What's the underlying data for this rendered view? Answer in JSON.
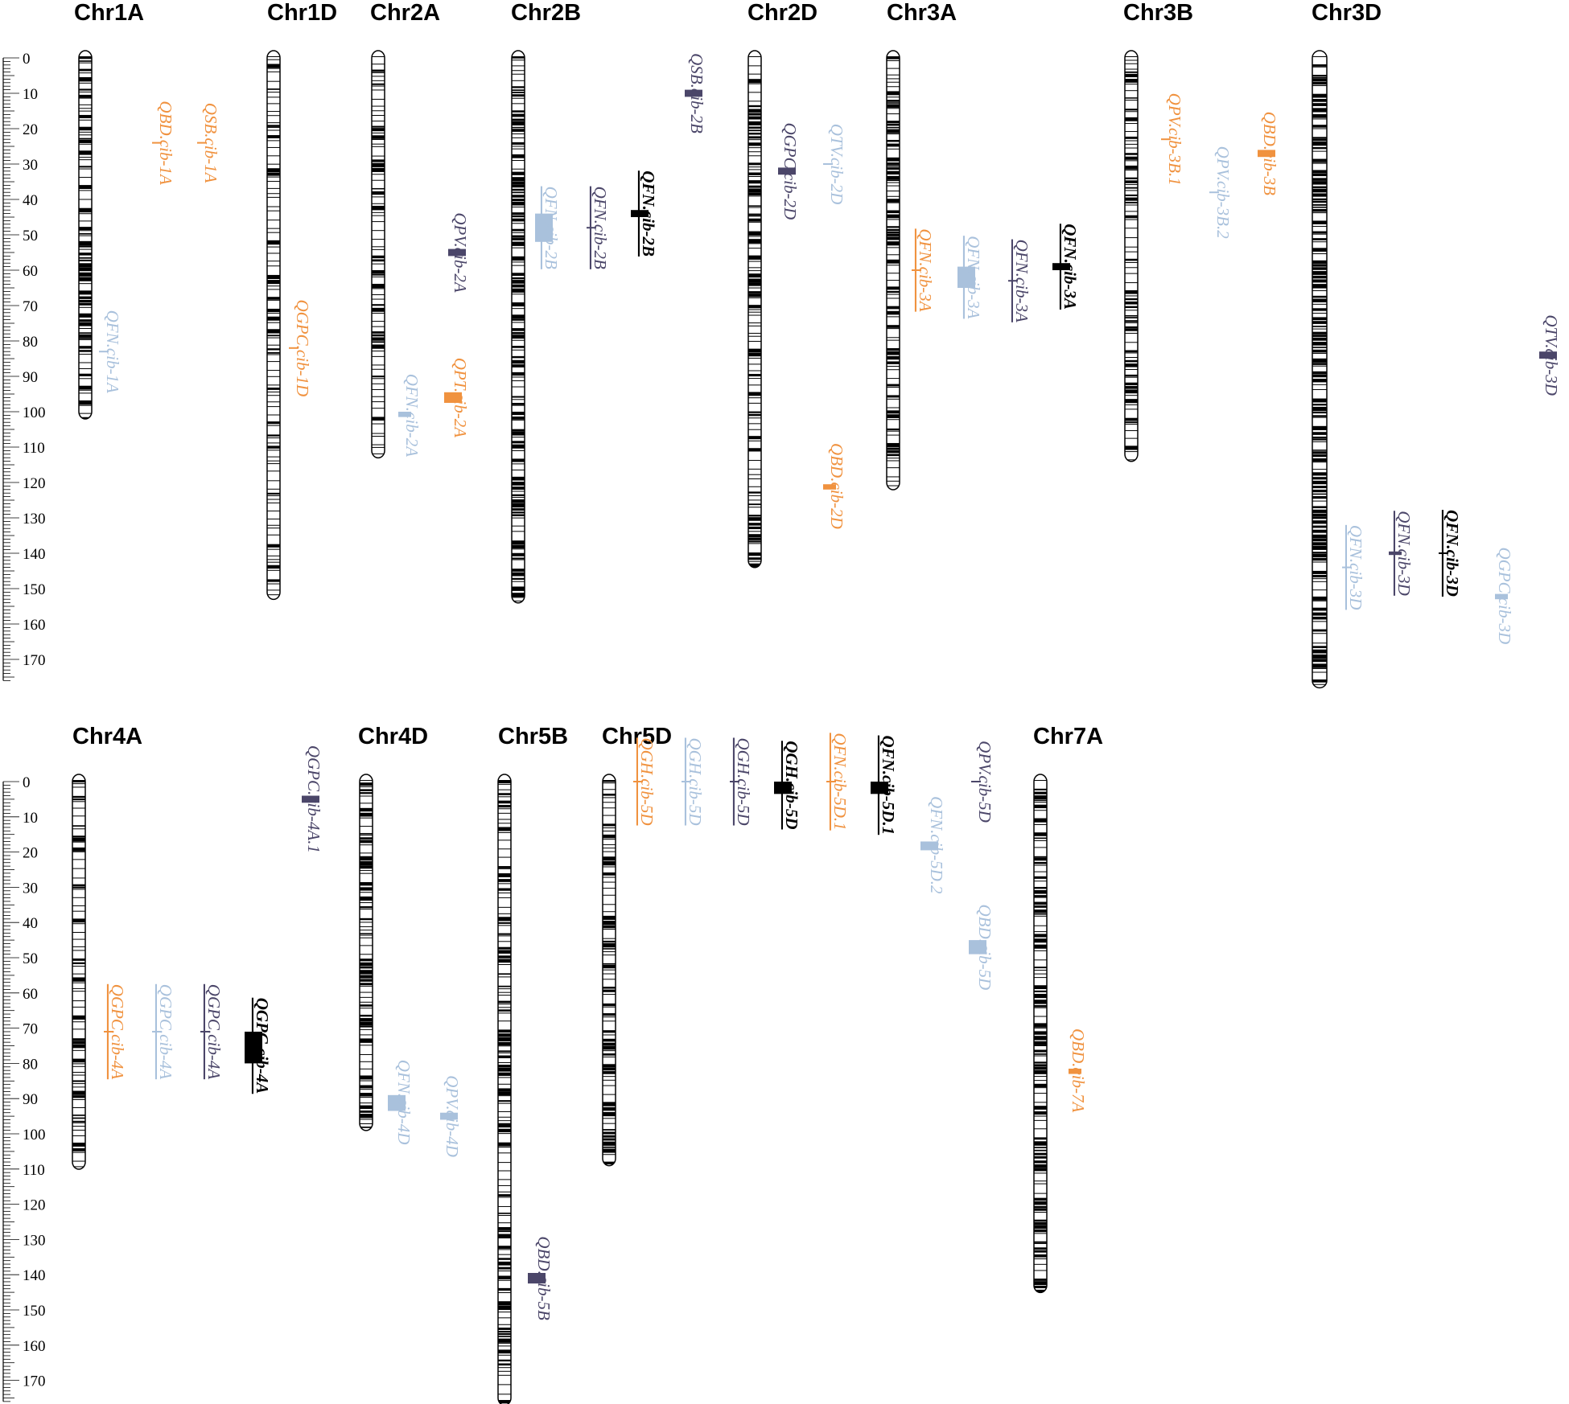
{
  "colors": {
    "orange": "#F0923F",
    "light": "#A9C1DC",
    "purple": "#4B4669",
    "black": "#000000"
  },
  "scale": {
    "ticks": [
      0,
      10,
      20,
      30,
      40,
      50,
      60,
      70,
      80,
      90,
      100,
      110,
      120,
      130,
      140,
      150,
      160,
      170
    ]
  },
  "chromosomes": [
    {
      "id": "chr1a",
      "name": "Chr1A",
      "length": 100
    },
    {
      "id": "chr1d",
      "name": "Chr1D",
      "length": 151
    },
    {
      "id": "chr2a",
      "name": "Chr2A",
      "length": 111
    },
    {
      "id": "chr2b",
      "name": "Chr2B",
      "length": 152
    },
    {
      "id": "chr2d",
      "name": "Chr2D",
      "length": 142
    },
    {
      "id": "chr3a",
      "name": "Chr3A",
      "length": 120
    },
    {
      "id": "chr3b",
      "name": "Chr3B",
      "length": 112
    },
    {
      "id": "chr3d",
      "name": "Chr3D",
      "length": 176
    },
    {
      "id": "chr4a",
      "name": "Chr4A",
      "length": 108
    },
    {
      "id": "chr4d",
      "name": "Chr4D",
      "length": 97
    },
    {
      "id": "chr5b",
      "name": "Chr5B",
      "length": 175
    },
    {
      "id": "chr5d",
      "name": "Chr5D",
      "length": 107
    },
    {
      "id": "chr7a",
      "name": "Chr7A",
      "length": 143
    }
  ],
  "qtls": [
    {
      "label": "QBD.cib-1A",
      "chr": "Chr1A",
      "pos": 24,
      "start": 24,
      "end": 24,
      "color": "orange",
      "underline": false
    },
    {
      "label": "QSB.cib-1A",
      "chr": "Chr1A",
      "pos": 24,
      "start": 24,
      "end": 24,
      "color": "orange",
      "underline": false
    },
    {
      "label": "QFN.cib-1A",
      "chr": "Chr1A",
      "pos": 83,
      "start": 83,
      "end": 83,
      "color": "light",
      "underline": false
    },
    {
      "label": "QGPC.cib-1D",
      "chr": "Chr1D",
      "pos": 82,
      "start": 82,
      "end": 82,
      "color": "orange",
      "underline": false
    },
    {
      "label": "QPV.cib-2A",
      "chr": "Chr2A",
      "pos": 55,
      "start": 54,
      "end": 56,
      "color": "purple",
      "underline": false
    },
    {
      "label": "QFN.cib-2A",
      "chr": "Chr2A",
      "pos": 101,
      "start": 100,
      "end": 101.5,
      "color": "light",
      "underline": false
    },
    {
      "label": "QPT.cib-2A",
      "chr": "Chr2A",
      "pos": 96,
      "start": 94.5,
      "end": 97.5,
      "color": "orange",
      "underline": false
    },
    {
      "label": "QFN.cib-2B",
      "chr": "Chr2B",
      "pos": 48,
      "start": 44,
      "end": 52,
      "color": "light",
      "underline": true
    },
    {
      "label": "QFN.cib-2B",
      "chr": "Chr2B",
      "pos": 48,
      "start": 48,
      "end": 48,
      "color": "purple",
      "underline": true
    },
    {
      "label": "QFN.cib-2B",
      "chr": "Chr2B",
      "pos": 44,
      "start": 43,
      "end": 45,
      "color": "black",
      "underline": true
    },
    {
      "label": "QSB.cib-2B",
      "chr": "Chr2B",
      "pos": 10,
      "start": 9,
      "end": 11,
      "color": "purple",
      "underline": false
    },
    {
      "label": "QGPC.cib-2D",
      "chr": "Chr2D",
      "pos": 32,
      "start": 31,
      "end": 33,
      "color": "purple",
      "underline": false
    },
    {
      "label": "QTV.cib-2D",
      "chr": "Chr2D",
      "pos": 30,
      "start": 30,
      "end": 30,
      "color": "light",
      "underline": false
    },
    {
      "label": "QBD.cib-2D",
      "chr": "Chr2D",
      "pos": 121,
      "start": 120.5,
      "end": 122,
      "color": "orange",
      "underline": false
    },
    {
      "label": "QFN.cib-3A",
      "chr": "Chr3A",
      "pos": 60,
      "start": 60,
      "end": 60,
      "color": "orange",
      "underline": true
    },
    {
      "label": "QFN.cib-3A",
      "chr": "Chr3A",
      "pos": 62,
      "start": 59,
      "end": 65,
      "color": "light",
      "underline": true
    },
    {
      "label": "QFN.cib-3A",
      "chr": "Chr3A",
      "pos": 63,
      "start": 63,
      "end": 63,
      "color": "purple",
      "underline": true
    },
    {
      "label": "QFN.cib-3A",
      "chr": "Chr3A",
      "pos": 59,
      "start": 58,
      "end": 60,
      "color": "black",
      "underline": true
    },
    {
      "label": "QPV.cib-3B.1",
      "chr": "Chr3B",
      "pos": 23,
      "start": 23,
      "end": 23,
      "color": "orange",
      "underline": false
    },
    {
      "label": "QPV.cib-3B.2",
      "chr": "Chr3B",
      "pos": 38,
      "start": 38,
      "end": 38,
      "color": "light",
      "underline": false
    },
    {
      "label": "QBD.cib-3B",
      "chr": "Chr3B",
      "pos": 27,
      "start": 26,
      "end": 28,
      "color": "orange",
      "underline": false
    },
    {
      "label": "QTV.cib-3D",
      "chr": "Chr3D",
      "pos": 84,
      "start": 83,
      "end": 85,
      "color": "purple",
      "underline": false
    },
    {
      "label": "QFN.cib-3D",
      "chr": "Chr3D",
      "pos": 144,
      "start": 144,
      "end": 144,
      "color": "light",
      "underline": true
    },
    {
      "label": "QFN.cib-3D",
      "chr": "Chr3D",
      "pos": 140,
      "start": 139.5,
      "end": 140.5,
      "color": "purple",
      "underline": true
    },
    {
      "label": "QFN.cib-3D",
      "chr": "Chr3D",
      "pos": 140,
      "start": 140,
      "end": 140,
      "color": "black",
      "underline": true
    },
    {
      "label": "QGPC.cib-3D",
      "chr": "Chr3D",
      "pos": 152,
      "start": 151.5,
      "end": 153,
      "color": "light",
      "underline": false
    },
    {
      "label": "QGPC.cib-4A.1",
      "chr": "Chr4A",
      "pos": 5,
      "start": 4,
      "end": 6,
      "color": "purple",
      "underline": false
    },
    {
      "label": "QGPC.cib-4A",
      "chr": "Chr4A",
      "pos": 71,
      "start": 71,
      "end": 71,
      "color": "orange",
      "underline": true
    },
    {
      "label": "QGPC.cib-4A",
      "chr": "Chr4A",
      "pos": 71,
      "start": 71,
      "end": 71,
      "color": "light",
      "underline": true
    },
    {
      "label": "QGPC.cib-4A",
      "chr": "Chr4A",
      "pos": 71,
      "start": 71,
      "end": 71,
      "color": "purple",
      "underline": true
    },
    {
      "label": "QGPC.cib-4A",
      "chr": "Chr4A",
      "pos": 75,
      "start": 71,
      "end": 80,
      "color": "black",
      "underline": true
    },
    {
      "label": "QFN.cib-4D",
      "chr": "Chr4D",
      "pos": 91,
      "start": 89,
      "end": 93.5,
      "color": "light",
      "underline": false
    },
    {
      "label": "QPV.cib-4D",
      "chr": "Chr4D",
      "pos": 95,
      "start": 94,
      "end": 96,
      "color": "light",
      "underline": false
    },
    {
      "label": "QBD.cib-5B",
      "chr": "Chr5B",
      "pos": 141,
      "start": 139.5,
      "end": 142.5,
      "color": "purple",
      "underline": false
    },
    {
      "label": "QGH.cib-5D",
      "chr": "Chr5D",
      "pos": 0,
      "start": 0,
      "end": 0,
      "color": "orange",
      "underline": true
    },
    {
      "label": "QGH.cib-5D",
      "chr": "Chr5D",
      "pos": 0,
      "start": 0,
      "end": 0,
      "color": "light",
      "underline": true
    },
    {
      "label": "QGH.cib-5D",
      "chr": "Chr5D",
      "pos": 0,
      "start": 0,
      "end": 0,
      "color": "purple",
      "underline": true
    },
    {
      "label": "QGH.cib-5D",
      "chr": "Chr5D",
      "pos": 1,
      "start": 0,
      "end": 3.5,
      "color": "black",
      "underline": true
    },
    {
      "label": "QFN.cib-5D.1",
      "chr": "Chr5D",
      "pos": 0,
      "start": 0,
      "end": 0,
      "color": "orange",
      "underline": true
    },
    {
      "label": "QFN.cib-5D.1",
      "chr": "Chr5D",
      "pos": 1,
      "start": 0,
      "end": 3.5,
      "color": "black",
      "underline": true
    },
    {
      "label": "QFN.cib-5D.2",
      "chr": "Chr5D",
      "pos": 18,
      "start": 17,
      "end": 19.5,
      "color": "light",
      "underline": false
    },
    {
      "label": "QPV.cib-5D",
      "chr": "Chr5D",
      "pos": 0,
      "start": 0,
      "end": 0,
      "color": "purple",
      "underline": false
    },
    {
      "label": "QBD.cib-5D",
      "chr": "Chr5D",
      "pos": 47,
      "start": 45,
      "end": 49,
      "color": "light",
      "underline": false
    },
    {
      "label": "QBD.cib-7A",
      "chr": "Chr7A",
      "pos": 82,
      "start": 81.5,
      "end": 83,
      "color": "orange",
      "underline": false
    }
  ]
}
